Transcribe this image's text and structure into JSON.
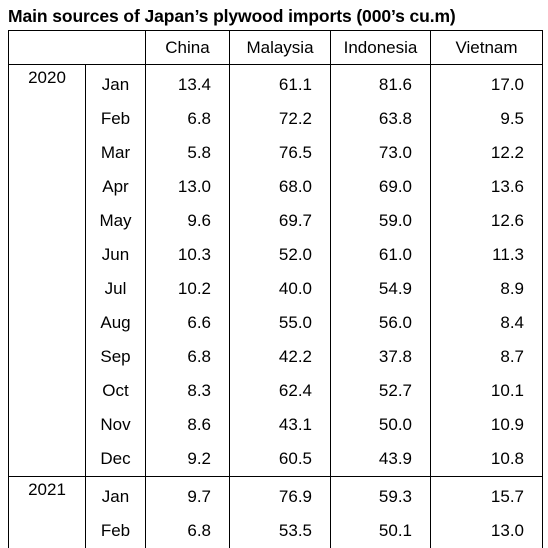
{
  "title": "Main sources of Japan’s plywood imports (000’s cu.m)",
  "chart_data": {
    "type": "table",
    "title": "Main sources of Japan’s plywood imports (000’s cu.m)",
    "columns": [
      "China",
      "Malaysia",
      "Indonesia",
      "Vietnam"
    ],
    "groups": [
      {
        "year": "2020",
        "rows": [
          {
            "month": "Jan",
            "values": [
              "13.4",
              "61.1",
              "81.6",
              "17.0"
            ]
          },
          {
            "month": "Feb",
            "values": [
              "6.8",
              "72.2",
              "63.8",
              "9.5"
            ]
          },
          {
            "month": "Mar",
            "values": [
              "5.8",
              "76.5",
              "73.0",
              "12.2"
            ]
          },
          {
            "month": "Apr",
            "values": [
              "13.0",
              "68.0",
              "69.0",
              "13.6"
            ]
          },
          {
            "month": "May",
            "values": [
              "9.6",
              "69.7",
              "59.0",
              "12.6"
            ]
          },
          {
            "month": "Jun",
            "values": [
              "10.3",
              "52.0",
              "61.0",
              "11.3"
            ]
          },
          {
            "month": "Jul",
            "values": [
              "10.2",
              "40.0",
              "54.9",
              "8.9"
            ]
          },
          {
            "month": "Aug",
            "values": [
              "6.6",
              "55.0",
              "56.0",
              "8.4"
            ]
          },
          {
            "month": "Sep",
            "values": [
              "6.8",
              "42.2",
              "37.8",
              "8.7"
            ]
          },
          {
            "month": "Oct",
            "values": [
              "8.3",
              "62.4",
              "52.7",
              "10.1"
            ]
          },
          {
            "month": "Nov",
            "values": [
              "8.6",
              "43.1",
              "50.0",
              "10.9"
            ]
          },
          {
            "month": "Dec",
            "values": [
              "9.2",
              "60.5",
              "43.9",
              "10.8"
            ]
          }
        ]
      },
      {
        "year": "2021",
        "rows": [
          {
            "month": "Jan",
            "values": [
              "9.7",
              "76.9",
              "59.3",
              "15.7"
            ]
          },
          {
            "month": "Feb",
            "values": [
              "6.8",
              "53.5",
              "50.1",
              "13.0"
            ]
          }
        ]
      }
    ]
  }
}
